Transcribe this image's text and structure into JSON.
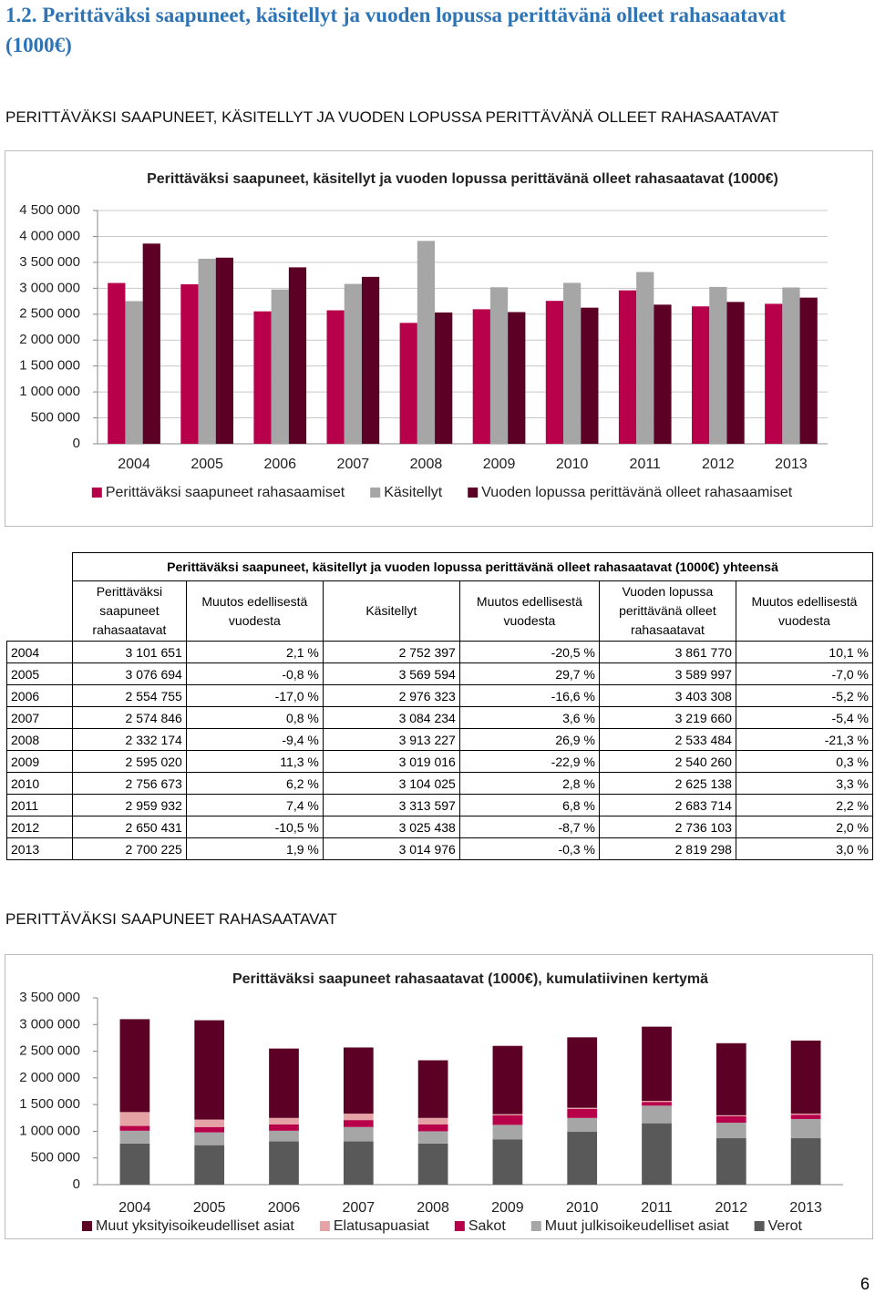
{
  "heading": "1.2. Perittäväksi saapuneet, käsitellyt ja vuoden lopussa perittävänä olleet rahasaatavat (1000€)",
  "section1": "PERITTÄVÄKSI SAAPUNEET, KÄSITELLYT JA VUODEN LOPUSSA PERITTÄVÄNÄ OLLEET RAHASAATAVAT",
  "section2": "PERITTÄVÄKSI SAAPUNEET RAHASAATAVAT",
  "page_number": "6",
  "chart_data": [
    {
      "type": "bar",
      "title": "Perittäväksi saapuneet, käsitellyt ja vuoden lopussa perittävänä olleet rahasaatavat (1000€)",
      "categories": [
        "2004",
        "2005",
        "2006",
        "2007",
        "2008",
        "2009",
        "2010",
        "2011",
        "2012",
        "2013"
      ],
      "series": [
        {
          "name": "Perittäväksi saapuneet rahasaamiset",
          "color": "#b8004a",
          "values": [
            3101651,
            3076694,
            2554755,
            2574846,
            2332174,
            2595020,
            2756673,
            2959932,
            2650431,
            2700225
          ]
        },
        {
          "name": "Käsitellyt",
          "color": "#a6a6a6",
          "values": [
            2752397,
            3569594,
            2976323,
            3084234,
            3913227,
            3019016,
            3104025,
            3313597,
            3025438,
            3014976
          ]
        },
        {
          "name": "Vuoden lopussa perittävänä olleet rahasaamiset",
          "color": "#5c0026",
          "values": [
            3861770,
            3589997,
            3403308,
            3219660,
            2533484,
            2540260,
            2625138,
            2683714,
            2736103,
            2819298
          ]
        }
      ],
      "ylim": [
        0,
        4500000
      ],
      "yticks": [
        0,
        {
          "value": 500000,
          "label": "500 000"
        },
        {
          "value": 1000000,
          "label": "1 000 000"
        },
        {
          "value": 1500000,
          "label": "1 500 000"
        },
        {
          "value": 2000000,
          "label": "2 000 000"
        },
        {
          "value": 2500000,
          "label": "2 500 000"
        },
        {
          "value": 3000000,
          "label": "3 000 000"
        },
        {
          "value": 3500000,
          "label": "3 500 000"
        },
        {
          "value": 4000000,
          "label": "4 000 000"
        },
        {
          "value": 4500000,
          "label": "4 500 000"
        }
      ],
      "grid": true
    },
    {
      "type": "stacked_bar",
      "title": "Perittäväksi saapuneet rahasaatavat (1000€), kumulatiivinen kertymä",
      "categories": [
        "2004",
        "2005",
        "2006",
        "2007",
        "2008",
        "2009",
        "2010",
        "2011",
        "2012",
        "2013"
      ],
      "series": [
        {
          "name": "Verot",
          "color": "#595959",
          "values": [
            770000,
            740000,
            810000,
            810000,
            770000,
            850000,
            990000,
            1150000,
            870000,
            870000
          ]
        },
        {
          "name": "Muut julkisoikeudelliset asiat",
          "color": "#a6a6a6",
          "values": [
            240000,
            240000,
            200000,
            270000,
            230000,
            270000,
            260000,
            330000,
            290000,
            360000
          ]
        },
        {
          "name": "Sakot",
          "color": "#b8004a",
          "values": [
            90000,
            100000,
            120000,
            130000,
            130000,
            180000,
            170000,
            70000,
            120000,
            80000
          ]
        },
        {
          "name": "Elatusapuasiat",
          "color": "#e6a3a6",
          "values": [
            260000,
            140000,
            120000,
            120000,
            120000,
            20000,
            20000,
            20000,
            20000,
            20000
          ]
        },
        {
          "name": "Muut yksityisoikeudelliset asiat",
          "color": "#5c0026",
          "values": [
            1740000,
            1860000,
            1300000,
            1240000,
            1080000,
            1280000,
            1320000,
            1390000,
            1350000,
            1370000
          ]
        }
      ],
      "ylim": [
        0,
        3500000
      ],
      "yticks": [
        0,
        {
          "value": 500000,
          "label": "500 000"
        },
        {
          "value": 1000000,
          "label": "1 000 000"
        },
        {
          "value": 1500000,
          "label": "1 500 000"
        },
        {
          "value": 2000000,
          "label": "2 000 000"
        },
        {
          "value": 2500000,
          "label": "2 500 000"
        },
        {
          "value": 3000000,
          "label": "3 000 000"
        },
        {
          "value": 3500000,
          "label": "3 500 000"
        }
      ],
      "grid": false
    }
  ],
  "table": {
    "title": "Perittäväksi saapuneet, käsitellyt ja vuoden lopussa perittävänä olleet rahasaatavat (1000€) yhteensä",
    "header": [
      "Perittäväksi saapuneet rahasaatavat",
      "Muutos edellisestä vuodesta",
      "Käsitellyt",
      "Muutos edellisestä vuodesta",
      "Vuoden lopussa perittävänä olleet rahasaatavat",
      "Muutos edellisestä vuodesta"
    ],
    "rows": [
      [
        "2004",
        "3 101 651",
        "2,1 %",
        "2 752 397",
        "-20,5 %",
        "3 861 770",
        "10,1 %"
      ],
      [
        "2005",
        "3 076 694",
        "-0,8 %",
        "3 569 594",
        "29,7 %",
        "3 589 997",
        "-7,0 %"
      ],
      [
        "2006",
        "2 554 755",
        "-17,0 %",
        "2 976 323",
        "-16,6 %",
        "3 403 308",
        "-5,2 %"
      ],
      [
        "2007",
        "2 574 846",
        "0,8 %",
        "3 084 234",
        "3,6 %",
        "3 219 660",
        "-5,4 %"
      ],
      [
        "2008",
        "2 332 174",
        "-9,4 %",
        "3 913 227",
        "26,9 %",
        "2 533 484",
        "-21,3 %"
      ],
      [
        "2009",
        "2 595 020",
        "11,3 %",
        "3 019 016",
        "-22,9 %",
        "2 540 260",
        "0,3 %"
      ],
      [
        "2010",
        "2 756 673",
        "6,2 %",
        "3 104 025",
        "2,8 %",
        "2 625 138",
        "3,3 %"
      ],
      [
        "2011",
        "2 959 932",
        "7,4 %",
        "3 313 597",
        "6,8 %",
        "2 683 714",
        "2,2 %"
      ],
      [
        "2012",
        "2 650 431",
        "-10,5 %",
        "3 025 438",
        "-8,7 %",
        "2 736 103",
        "2,0 %"
      ],
      [
        "2013",
        "2 700 225",
        "1,9 %",
        "3 014 976",
        "-0,3 %",
        "2 819 298",
        "3,0 %"
      ]
    ]
  }
}
